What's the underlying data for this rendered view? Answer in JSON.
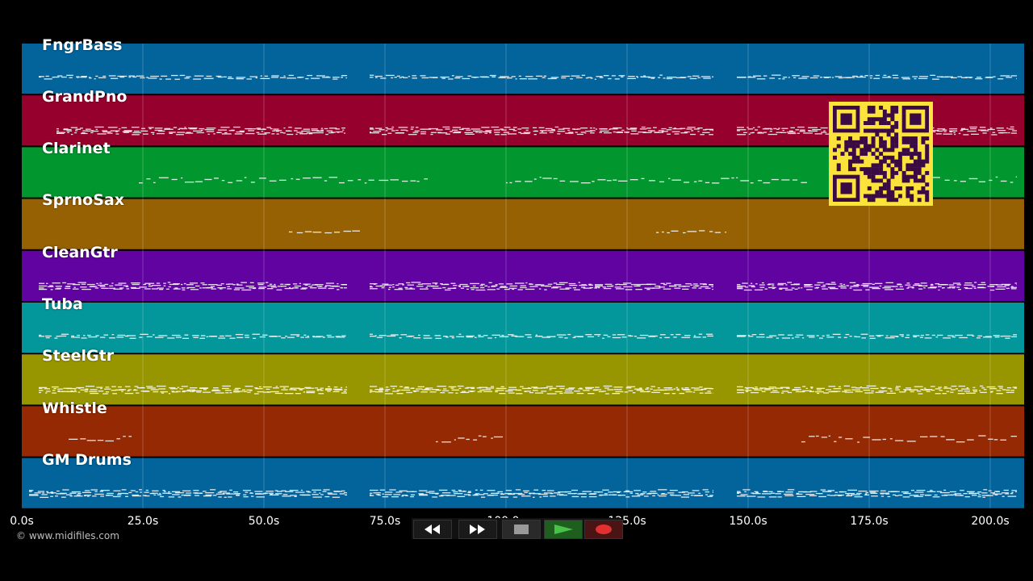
{
  "timeline": {
    "tracks": [
      {
        "name": "FngrBass",
        "color": "#03639b"
      },
      {
        "name": "GrandPno",
        "color": "#96002d"
      },
      {
        "name": "Clarinet",
        "color": "#02962e"
      },
      {
        "name": "SprnoSax",
        "color": "#966103"
      },
      {
        "name": "CleanGtr",
        "color": "#6003a0"
      },
      {
        "name": "Tuba",
        "color": "#03969a"
      },
      {
        "name": "SteelGtr",
        "color": "#989600"
      },
      {
        "name": "Whistle",
        "color": "#952903"
      },
      {
        "name": "GM Drums",
        "color": "#03639b"
      }
    ],
    "ticks": [
      "0.0s",
      "25.0s",
      "50.0s",
      "75.0s",
      "100.0s",
      "125.0s",
      "150.0s",
      "175.0s",
      "200.0s"
    ]
  },
  "copyright": "© www.midifiles.com",
  "transport": {
    "buttons": [
      {
        "name": "rewind-button",
        "icon": "rewind-icon"
      },
      {
        "name": "fast-forward-button",
        "icon": "fast-forward-icon"
      },
      {
        "name": "stop-button",
        "icon": "stop-icon"
      },
      {
        "name": "play-button",
        "icon": "play-icon"
      },
      {
        "name": "record-button",
        "icon": "record-icon"
      }
    ]
  },
  "overlay": {
    "qr_icon": "qr-code-icon",
    "qr_color": "#fbe33b"
  }
}
